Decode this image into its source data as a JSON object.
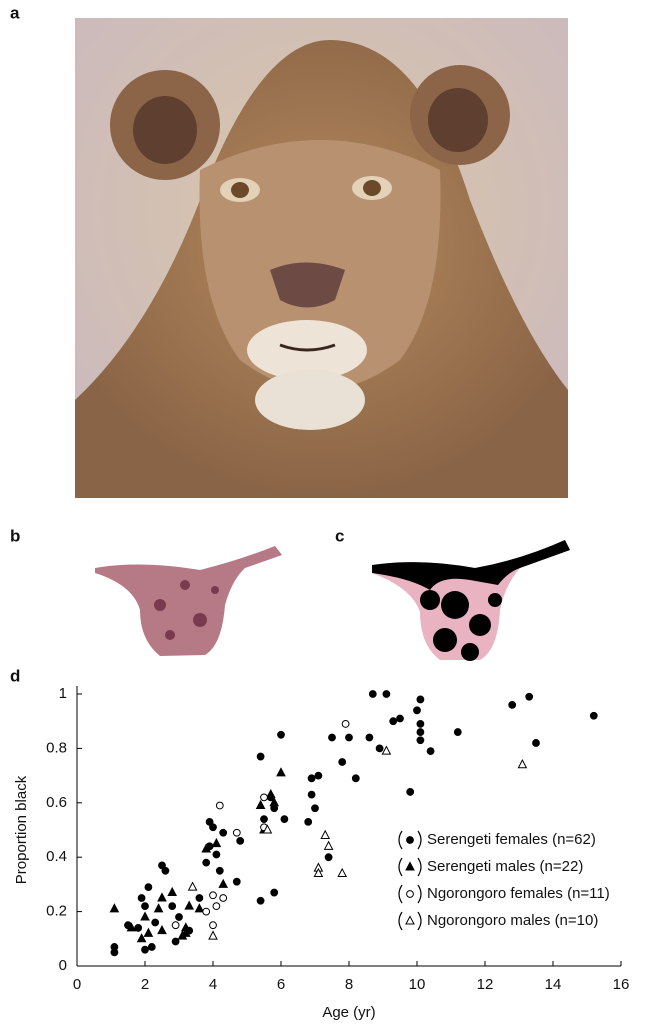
{
  "panel_labels": [
    "a",
    "b",
    "c",
    "d"
  ],
  "chart_data": {
    "type": "scatter",
    "x_label": "Age (yr)",
    "y_label": "Proportion black",
    "xlim": [
      0,
      16
    ],
    "xticks": [
      0,
      2,
      4,
      6,
      8,
      10,
      12,
      14,
      16
    ],
    "ylim": [
      0,
      1
    ],
    "yticks": [
      0,
      0.2,
      0.4,
      0.6,
      0.8,
      1
    ],
    "legend": "lower right",
    "series": [
      {
        "name": "Serengeti females (n=62)",
        "color": "#000000",
        "marker": "circle",
        "filled": true,
        "x": [
          1.1,
          1.1,
          1.5,
          1.8,
          1.9,
          2.0,
          2.0,
          2.1,
          2.2,
          2.3,
          2.5,
          2.6,
          2.8,
          2.9,
          3.0,
          3.3,
          3.6,
          3.8,
          3.9,
          3.9,
          4.0,
          4.1,
          4.2,
          4.3,
          4.7,
          4.8,
          5.4,
          5.4,
          5.5,
          5.7,
          5.8,
          5.8,
          6.0,
          6.1,
          6.8,
          6.9,
          6.9,
          7.0,
          7.1,
          7.4,
          7.5,
          7.8,
          8.0,
          8.2,
          8.6,
          8.7,
          8.9,
          9.1,
          9.3,
          9.5,
          9.8,
          10.0,
          10.1,
          10.1,
          10.1,
          10.1,
          10.4,
          11.2,
          12.8,
          13.3,
          13.5,
          15.2
        ],
        "y": [
          0.05,
          0.07,
          0.15,
          0.14,
          0.25,
          0.06,
          0.22,
          0.29,
          0.07,
          0.16,
          0.37,
          0.35,
          0.22,
          0.09,
          0.18,
          0.13,
          0.25,
          0.38,
          0.44,
          0.53,
          0.51,
          0.41,
          0.35,
          0.49,
          0.31,
          0.46,
          0.77,
          0.24,
          0.54,
          0.62,
          0.58,
          0.27,
          0.85,
          0.54,
          0.53,
          0.69,
          0.63,
          0.58,
          0.7,
          0.4,
          0.84,
          0.75,
          0.84,
          0.69,
          0.84,
          1.0,
          0.8,
          1.0,
          0.9,
          0.91,
          0.64,
          0.94,
          0.98,
          0.89,
          0.83,
          0.86,
          0.79,
          0.86,
          0.96,
          0.99,
          0.82,
          0.92
        ]
      },
      {
        "name": "Serengeti males (n=22)",
        "color": "#000000",
        "marker": "triangle",
        "filled": true,
        "x": [
          1.1,
          1.6,
          1.9,
          2.0,
          2.1,
          2.4,
          2.5,
          2.5,
          2.8,
          3.1,
          3.2,
          3.3,
          3.6,
          3.8,
          4.1,
          4.3,
          5.4,
          5.5,
          5.7,
          5.8,
          6.0,
          3.2
        ],
        "y": [
          0.21,
          0.14,
          0.1,
          0.18,
          0.12,
          0.21,
          0.13,
          0.25,
          0.27,
          0.11,
          0.14,
          0.22,
          0.21,
          0.43,
          0.45,
          0.3,
          0.59,
          0.5,
          0.63,
          0.6,
          0.71,
          0.12
        ]
      },
      {
        "name": "Ngorongoro females (n=11)",
        "color": "#000000",
        "marker": "circle",
        "filled": false,
        "x": [
          2.9,
          3.8,
          4.0,
          4.0,
          4.1,
          4.2,
          4.3,
          4.7,
          5.5,
          5.5,
          7.9
        ],
        "y": [
          0.15,
          0.2,
          0.26,
          0.15,
          0.22,
          0.59,
          0.25,
          0.49,
          0.62,
          0.51,
          0.89
        ]
      },
      {
        "name": "Ngorongoro males (n=10)",
        "color": "#000000",
        "marker": "triangle",
        "filled": false,
        "x": [
          3.4,
          4.0,
          5.6,
          7.1,
          7.1,
          7.3,
          7.4,
          7.8,
          9.1,
          13.1
        ],
        "y": [
          0.29,
          0.11,
          0.5,
          0.36,
          0.34,
          0.48,
          0.44,
          0.34,
          0.79,
          0.74
        ]
      }
    ]
  }
}
